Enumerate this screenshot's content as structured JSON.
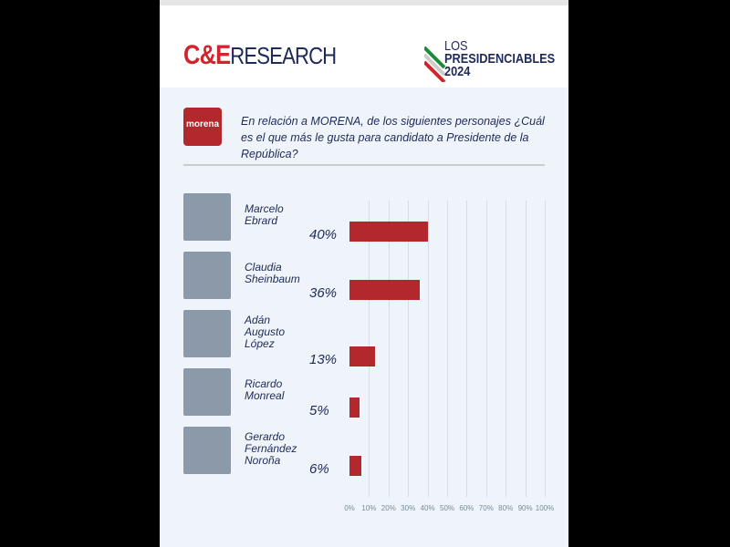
{
  "brand": {
    "logo_main": "C&E",
    "logo_sub": "RESEARCH",
    "campaign_line1": "LOS",
    "campaign_line2": "PRESIDENCIABLES",
    "campaign_line3": "2024",
    "party": "morena"
  },
  "question": "En relación a MORENA, de los siguientes personajes ¿Cuál es el que más le gusta para candidato a Presidente de la República?",
  "colors": {
    "bar": "#b3282d",
    "text": "#1e2a5a",
    "background": "#eef4f9"
  },
  "chart_data": {
    "type": "bar",
    "orientation": "horizontal",
    "categories": [
      "Marcelo Ebrard",
      "Claudia Sheinbaum",
      "Adán Augusto López",
      "Ricardo Monreal",
      "Gerardo Fernández Noroña"
    ],
    "values": [
      40,
      36,
      13,
      5,
      6
    ],
    "value_labels": [
      "40%",
      "36%",
      "13%",
      "5%",
      "6%"
    ],
    "xlim": [
      0,
      100
    ],
    "tick_labels": [
      "0%",
      "10%",
      "20%",
      "30%",
      "40%",
      "50%",
      "60%",
      "70%",
      "80%",
      "90%",
      "100%"
    ],
    "grid": true
  }
}
